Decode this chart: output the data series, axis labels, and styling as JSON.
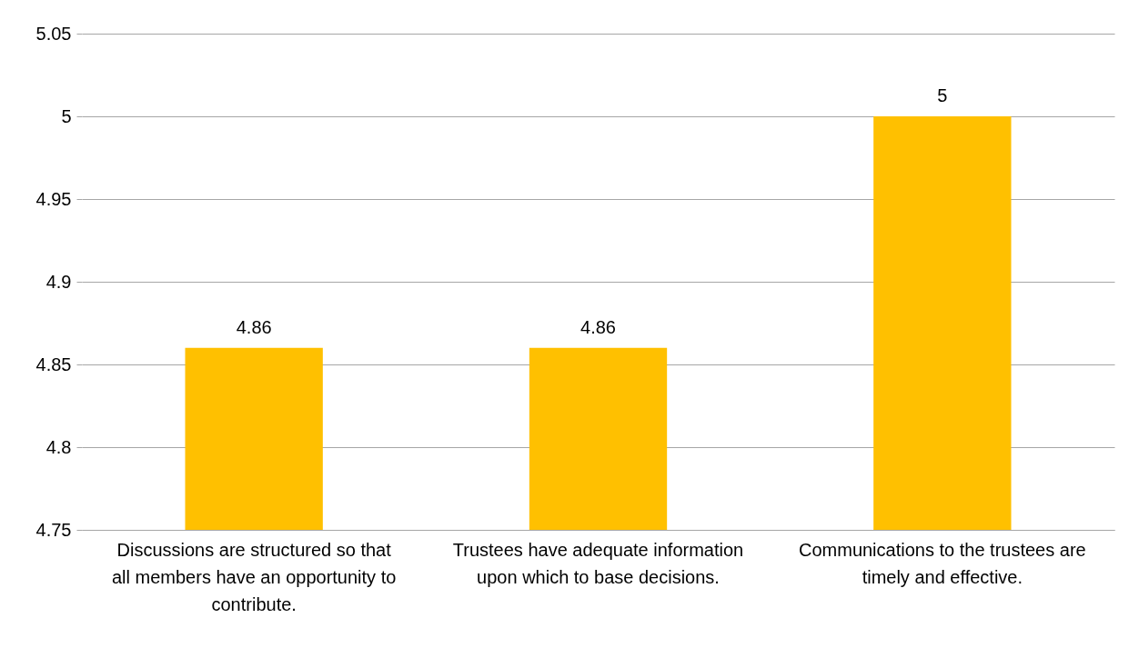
{
  "chart_data": {
    "type": "bar",
    "categories": [
      "Discussions are structured so that all members have an opportunity to contribute.",
      "Trustees have adequate information upon which to base decisions.",
      "Communications to the trustees are timely and effective."
    ],
    "values": [
      4.86,
      4.86,
      5
    ],
    "color": "#ffc000",
    "ylim": [
      4.75,
      5.05
    ],
    "yticks": [
      4.75,
      4.8,
      4.85,
      4.9,
      4.95,
      5,
      5.05
    ],
    "grid": "y",
    "data_labels": true
  }
}
